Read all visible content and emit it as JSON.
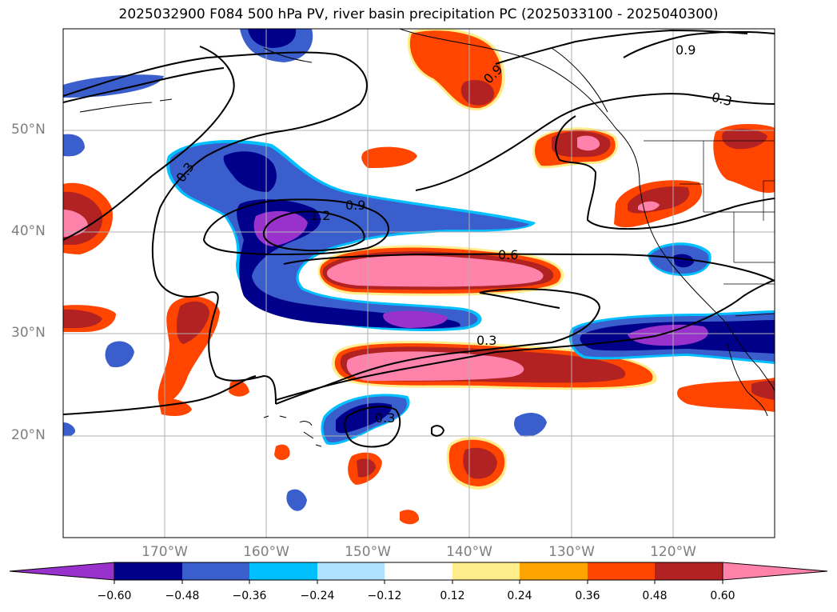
{
  "title": "2025032900 F084 500 hPa PV, river basin precipitation PC (2025033100 - 2025040300)",
  "map": {
    "projection": "PlateCarree",
    "lon_range": [
      -180,
      -110
    ],
    "lat_range": [
      10,
      60
    ],
    "lat_ticks": [
      "50°N",
      "40°N",
      "30°N",
      "20°N"
    ],
    "lon_ticks": [
      "170°W",
      "160°W",
      "150°W",
      "140°W",
      "130°W",
      "120°W"
    ],
    "gridlines": true,
    "gridline_color": "#b0b0b0",
    "coastlines": true,
    "state_borders": true
  },
  "pv_contour_labels": [
    "0.3",
    "1.2",
    "0.9",
    "0.6",
    "0.3",
    "0.3",
    "0.9",
    "0.9",
    "0.3"
  ],
  "colorbar": {
    "colors": [
      "#9932cc",
      "#00008b",
      "#3a5fcd",
      "#00bfff",
      "#b0e2ff",
      "#ffffff",
      "#ffec8b",
      "#ffa500",
      "#ff4500",
      "#b22222",
      "#ff82ab"
    ],
    "tick_labels": [
      "−0.60",
      "−0.48",
      "−0.36",
      "−0.24",
      "−0.12",
      "0.12",
      "0.24",
      "0.36",
      "0.48",
      "0.60"
    ],
    "extend": "both"
  }
}
